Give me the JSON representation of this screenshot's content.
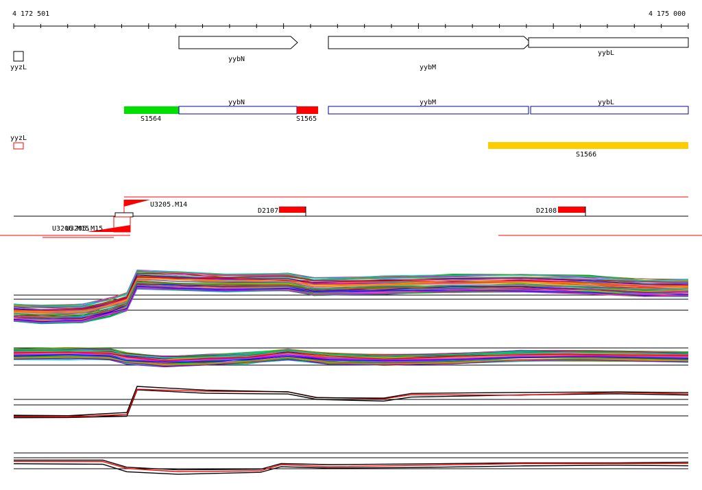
{
  "ruler": {
    "start_label": "4 172 501",
    "end_label": "4 175 000"
  },
  "genes": {
    "yyzL": "yyzL",
    "yybN": "yybN",
    "yybM": "yybM",
    "yybL": "yybL"
  },
  "transcripts": {
    "yybN": "yybN",
    "yybM": "yybM",
    "yybL": "yybL",
    "yyzL": "yyzL"
  },
  "segments": {
    "s1564": "S1564",
    "s1565": "S1565",
    "s1566": "S1566"
  },
  "features": {
    "u3205_m14": "U3205.M14",
    "u3205_m15": "U3205.M15",
    "u3206_m15": "U3206.M15",
    "d2107": "D2107",
    "d2108": "D2108"
  },
  "colors": {
    "green": "#00e000",
    "red": "#ff0000",
    "orange": "#ffcc00",
    "blue": "#0000aa",
    "black": "#000000"
  }
}
